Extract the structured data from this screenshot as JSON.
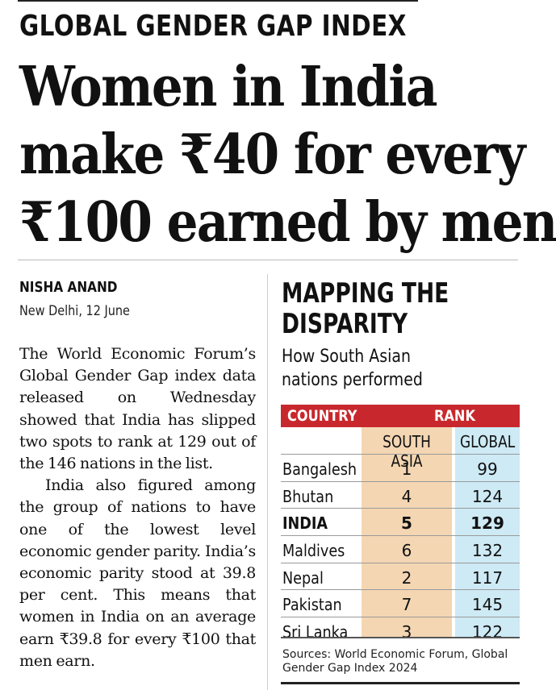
{
  "kicker": "GLOBAL GENDER GAP INDEX",
  "headline": {
    "line1": "Women in India",
    "line2": "make ₹40 for every",
    "line3": "₹100 earned by men"
  },
  "byline": {
    "author": "NISHA ANAND",
    "dateline": "New Delhi, 12 June"
  },
  "article": {
    "paragraphs": [
      "The World Economic Forum’s Global Gender Gap index data released on Wednesday showed that India has slipped two spots to rank at 129 out of the 146 nations in the list.",
      "India also figured among the group of nations to have one of the lowest level economic gender parity. India’s economic parity stood at 39.8 per cent. This means that women in India on an average earn ₹39.8 for every ₹100 that men earn."
    ]
  },
  "sidebar": {
    "title_line1": "MAPPING THE",
    "title_line2": "DISPARITY",
    "subtitle_line1": "How South Asian",
    "subtitle_line2": "nations performed",
    "source_line1": "Sources: World Economic Forum, Global",
    "source_line2": "Gender Gap Index 2024"
  },
  "colors": {
    "header_red": "#c8282d",
    "south_asia_band": "#f4d6b3",
    "global_band": "#cdeaf5"
  },
  "chart_data": {
    "type": "table",
    "header": {
      "country": "COUNTRY",
      "rank": "RANK"
    },
    "subheader": {
      "south_asia": "SOUTH ASIA",
      "global": "GLOBAL"
    },
    "rows": [
      {
        "country": "Bangalesh",
        "south_asia": "1",
        "global": "99"
      },
      {
        "country": "Bhutan",
        "south_asia": "4",
        "global": "124"
      },
      {
        "country": "INDIA",
        "south_asia": "5",
        "global": "129"
      },
      {
        "country": "Maldives",
        "south_asia": "6",
        "global": "132"
      },
      {
        "country": "Nepal",
        "south_asia": "2",
        "global": "117"
      },
      {
        "country": "Pakistan",
        "south_asia": "7",
        "global": "145"
      },
      {
        "country": "Sri Lanka",
        "south_asia": "3",
        "global": "122"
      }
    ]
  }
}
